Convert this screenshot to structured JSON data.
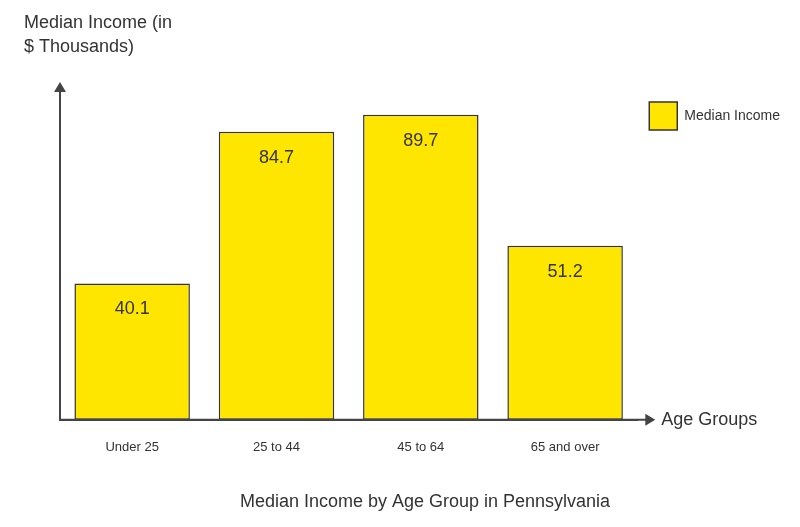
{
  "chart_data": {
    "type": "bar",
    "title": "Median Income by Age Group in Pennsylvania",
    "x_label": "Age Groups",
    "y_label": "Median Income (in $ Thousands)",
    "categories": [
      "Under 25",
      "25 to 44",
      "45 to 64",
      "65 and over"
    ],
    "series": [
      {
        "name": "Median Income",
        "color": "#ffe600",
        "values": [
          40.1,
          84.7,
          89.7,
          51.2
        ]
      }
    ],
    "ylim": [
      0,
      97
    ],
    "grid": false,
    "legend": "top-right",
    "data_labels": true,
    "tick_labels": "x"
  }
}
